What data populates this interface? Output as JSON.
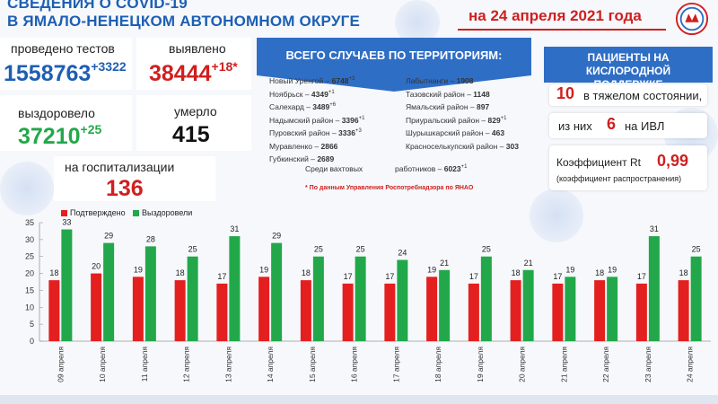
{
  "header": {
    "title_line1": "СВЕДЕНИЯ О COVID-19",
    "title_line2": "В ЯМАЛО-НЕНЕЦКОМ АВТОНОМНОМ ОКРУГЕ",
    "date": "на 24 апреля 2021 года"
  },
  "stats": {
    "tests": {
      "label": "проведено тестов",
      "value": "1558763",
      "delta": "+3322"
    },
    "detected": {
      "label": "выявлено",
      "value": "38444",
      "delta": "+18*"
    },
    "recovered": {
      "label": "выздоровело",
      "value": "37210",
      "delta": "+25"
    },
    "died": {
      "label": "умерло",
      "value": "415"
    },
    "hospital": {
      "label": "на госпитализации",
      "value": "136"
    }
  },
  "territories": {
    "heading": "ВСЕГО СЛУЧАЕВ ПО ТЕРРИТОРИЯМ:",
    "left": [
      {
        "name": "Новый Уренгой",
        "value": "6748",
        "delta": "+3"
      },
      {
        "name": "Ноябрьск",
        "value": "4349",
        "delta": "+1"
      },
      {
        "name": "Салехард",
        "value": "3489",
        "delta": "+6"
      },
      {
        "name": "Надымский район",
        "value": "3396",
        "delta": "+1"
      },
      {
        "name": "Пуровский район",
        "value": "3336",
        "delta": "+3"
      },
      {
        "name": "Муравленко",
        "value": "2866",
        "delta": ""
      },
      {
        "name": "Губкинский",
        "value": "2689",
        "delta": ""
      }
    ],
    "right": [
      {
        "name": "Лабытнанги",
        "value": "1908",
        "delta": ""
      },
      {
        "name": "Тазовский район",
        "value": "1148",
        "delta": ""
      },
      {
        "name": "Ямальский район",
        "value": "897",
        "delta": ""
      },
      {
        "name": "Приуральский район",
        "value": "829",
        "delta": "+1"
      },
      {
        "name": "Шурышкарский район",
        "value": "463",
        "delta": ""
      },
      {
        "name": "Красноселькупский район",
        "value": "303",
        "delta": ""
      }
    ],
    "shift_label": "Среди вахтовых",
    "shift_label2": "работников",
    "shift_value": "6023",
    "shift_delta": "+1",
    "note": "* По данным Управления  Роспотребнадзора по ЯНАО"
  },
  "oxygen": {
    "heading": "ПАЦИЕНТЫ НА КИСЛОРОДНОЙ ПОДДЕРЖКЕ",
    "severe_value": "10",
    "severe_label": "в тяжелом состоянии,",
    "ivl_prefix": "из них",
    "ivl_value": "6",
    "ivl_label": "на  ИВЛ",
    "rt_label": "Коэффициент Rt",
    "rt_value": "0,99",
    "rt_sub": "(коэффициент распространения)"
  },
  "colors": {
    "red": "#e41f1f",
    "green": "#22a84a",
    "blue": "#2f6ec5"
  },
  "chart_data": {
    "type": "bar",
    "categories": [
      "09 апреля",
      "10 апреля",
      "11 апреля",
      "12 апреля",
      "13 апреля",
      "14 апреля",
      "15 апреля",
      "16 апреля",
      "17 апреля",
      "18 апреля",
      "19 апреля",
      "20 апреля",
      "21 апреля",
      "22 апреля",
      "23 апреля",
      "24 апреля"
    ],
    "series": [
      {
        "name": "Подтверждено",
        "color": "#e41f1f",
        "values": [
          18,
          20,
          19,
          18,
          17,
          19,
          18,
          17,
          17,
          19,
          17,
          18,
          17,
          18,
          17,
          18
        ]
      },
      {
        "name": "Выздоровели",
        "color": "#22a84a",
        "values": [
          33,
          29,
          28,
          25,
          31,
          29,
          25,
          25,
          24,
          21,
          25,
          21,
          19,
          19,
          31,
          25
        ]
      }
    ],
    "yticks": [
      0,
      5,
      10,
      15,
      20,
      25,
      30,
      35
    ],
    "ylim": [
      0,
      35
    ],
    "legend": "top-left"
  }
}
